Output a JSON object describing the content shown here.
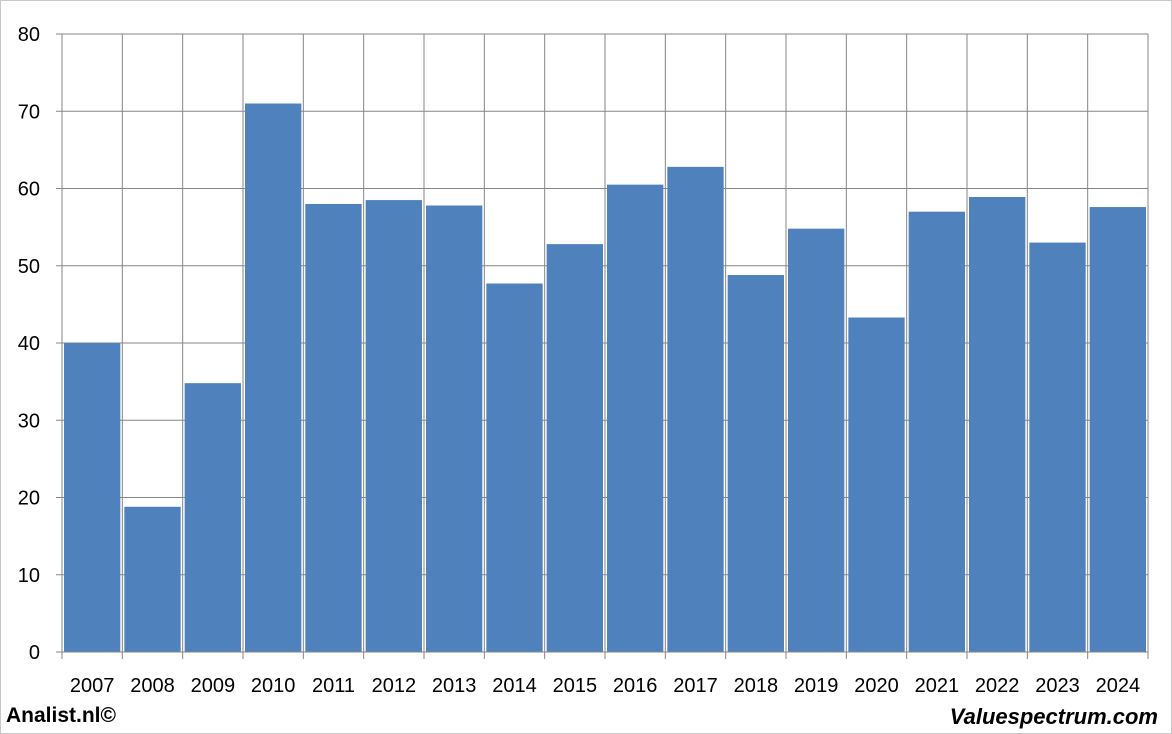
{
  "chart_data": {
    "type": "bar",
    "categories": [
      "2007",
      "2008",
      "2009",
      "2010",
      "2011",
      "2012",
      "2013",
      "2014",
      "2015",
      "2016",
      "2017",
      "2018",
      "2019",
      "2020",
      "2021",
      "2022",
      "2023",
      "2024"
    ],
    "values": [
      40,
      18.8,
      34.8,
      71,
      58,
      58.5,
      57.8,
      47.7,
      52.8,
      60.5,
      62.8,
      48.8,
      54.8,
      43.3,
      57,
      58.9,
      53,
      57.6
    ],
    "yticks": [
      "0",
      "10",
      "20",
      "30",
      "40",
      "50",
      "60",
      "70",
      "80"
    ],
    "ylim": [
      0,
      80
    ],
    "grid": true,
    "bar_color": "#4f81bd",
    "grid_color": "#868686"
  },
  "footer": {
    "left": "Analist.nl©",
    "right": "Valuespectrum.com"
  }
}
